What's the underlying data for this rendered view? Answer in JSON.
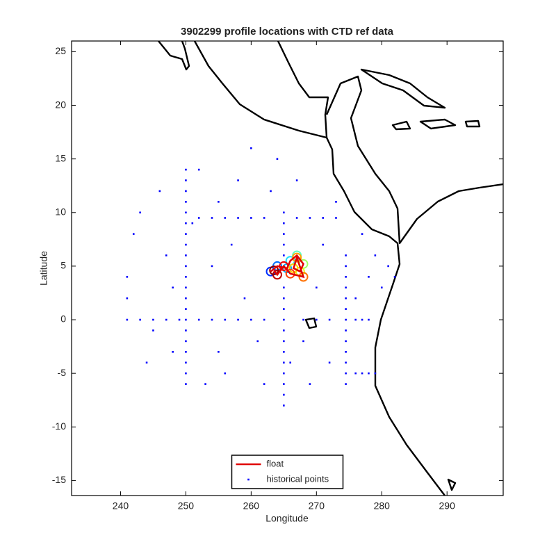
{
  "chart_data": {
    "type": "scatter",
    "title": "3902299 profile locations with CTD ref data",
    "xlabel": "Longitude",
    "ylabel": "Latitude",
    "xlim": [
      232.5,
      298.6
    ],
    "ylim": [
      -16.4,
      26.0
    ],
    "xticks": [
      240,
      250,
      260,
      270,
      280,
      290
    ],
    "yticks": [
      -15,
      -10,
      -5,
      0,
      5,
      10,
      15,
      20,
      25
    ],
    "legend": "lower center",
    "series": [
      {
        "name": "float",
        "color": "#e00000",
        "kind": "line",
        "x": [
          263,
          264,
          265.5,
          266,
          267,
          268,
          267.5,
          266.5,
          267,
          268,
          266,
          265,
          264,
          263.5
        ],
        "y": [
          4.5,
          5,
          4.8,
          5.5,
          6,
          5.2,
          4.5,
          4.8,
          5.8,
          4,
          4.3,
          5,
          4.2,
          4.6
        ]
      },
      {
        "name": "historical points",
        "color": "#0000ff",
        "kind": "points",
        "x": [
          250,
          250,
          250,
          250,
          250,
          250,
          250,
          250,
          250,
          250,
          250,
          250,
          250,
          250,
          250,
          250,
          250,
          250,
          250,
          250,
          250,
          265,
          265,
          265,
          265,
          265,
          265,
          265,
          265,
          265,
          265,
          265,
          265,
          265,
          265,
          265,
          265,
          265,
          274.5,
          274.5,
          274.5,
          274.5,
          274.5,
          274.5,
          274.5,
          274.5,
          274.5,
          274.5,
          274.5,
          274.5,
          274.5,
          241,
          243,
          245,
          247,
          249,
          252,
          254,
          256,
          258,
          260,
          262,
          268,
          270,
          272,
          276,
          277,
          278,
          252,
          254,
          256,
          258,
          260,
          262,
          267,
          269,
          271,
          273,
          276,
          277,
          278,
          279,
          241,
          241,
          242,
          243,
          245,
          246,
          247,
          248,
          248,
          252,
          253,
          254,
          255,
          255,
          256,
          257,
          258,
          259,
          260,
          261,
          262,
          263,
          264,
          266,
          267,
          268,
          269,
          270,
          271,
          272,
          273,
          276,
          277,
          278,
          279,
          280,
          281,
          282,
          244,
          251
        ],
        "y": [
          -6,
          -5,
          -4,
          -3,
          -2,
          -1,
          0,
          1,
          2,
          3,
          4,
          5,
          6,
          7,
          8,
          9,
          10,
          11,
          12,
          13,
          14,
          -8,
          -7,
          -6,
          -5,
          -4,
          -3,
          -2,
          -1,
          0,
          1,
          2,
          3,
          6,
          7,
          8,
          9,
          10,
          -6,
          -5,
          -4,
          -3,
          -2,
          -1,
          0,
          1,
          2,
          3,
          4,
          5,
          6,
          0,
          0,
          0,
          0,
          0,
          0,
          0,
          0,
          0,
          0,
          0,
          0,
          0,
          0,
          0,
          0,
          0,
          9.5,
          9.5,
          9.5,
          9.5,
          9.5,
          9.5,
          9.5,
          9.5,
          9.5,
          9.5,
          -5,
          -5,
          -5,
          -5,
          4,
          2,
          8,
          10,
          -1,
          12,
          6,
          -3,
          3,
          14,
          -6,
          5,
          11,
          -3,
          -5,
          7,
          13,
          2,
          16,
          -2,
          -6,
          12,
          15,
          -4,
          13,
          -2,
          -6,
          3,
          7,
          -4,
          11,
          2,
          8,
          4,
          6,
          3,
          5,
          4,
          -4,
          9
        ]
      },
      {
        "kind": "profiles",
        "x": [
          263,
          264,
          265.5,
          266,
          267,
          268,
          267.5,
          266.5,
          267,
          268,
          266,
          265,
          264,
          263.5
        ],
        "y": [
          4.5,
          5,
          4.8,
          5.5,
          6,
          5.2,
          4.5,
          4.8,
          5.8,
          4,
          4.3,
          5,
          4.2,
          4.6
        ],
        "colors": [
          "#0030ff",
          "#0070ff",
          "#00b0ff",
          "#20e0ff",
          "#60ffc0",
          "#a0ff60",
          "#e0ff20",
          "#ffd000",
          "#ffa000",
          "#ff7000",
          "#ff4000",
          "#f00000",
          "#c00000",
          "#900000"
        ]
      }
    ]
  }
}
